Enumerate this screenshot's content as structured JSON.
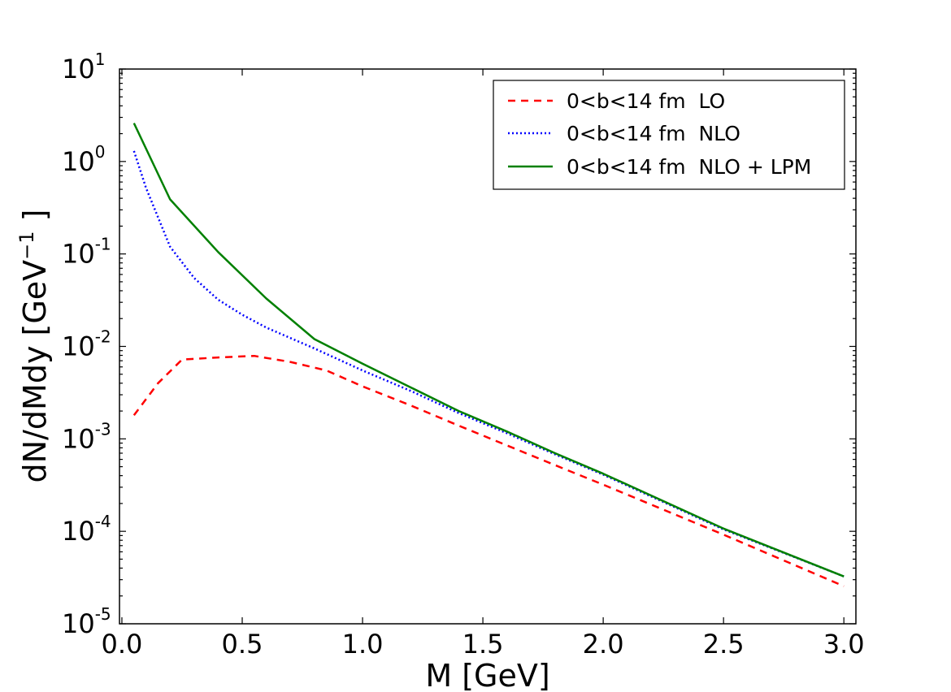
{
  "chart_data": {
    "type": "line",
    "xlabel": "M [GeV]",
    "ylabel": {
      "main": "dN/dMdy [GeV",
      "sup": "−1",
      "close": " ]"
    },
    "xlim": [
      -0.01,
      3.05
    ],
    "ylim_log10": [
      -5,
      1
    ],
    "yscale": "log",
    "x_ticks": [
      {
        "value": 0.0,
        "label": "0.0"
      },
      {
        "value": 0.5,
        "label": "0.5"
      },
      {
        "value": 1.0,
        "label": "1.0"
      },
      {
        "value": 1.5,
        "label": "1.5"
      },
      {
        "value": 2.0,
        "label": "2.0"
      },
      {
        "value": 2.5,
        "label": "2.5"
      },
      {
        "value": 3.0,
        "label": "3.0"
      }
    ],
    "y_ticks": [
      {
        "exp": 1,
        "base": "10",
        "sup": "1"
      },
      {
        "exp": 0,
        "base": "10",
        "sup": "0"
      },
      {
        "exp": -1,
        "base": "10",
        "sup": "-1"
      },
      {
        "exp": -2,
        "base": "10",
        "sup": "-2"
      },
      {
        "exp": -3,
        "base": "10",
        "sup": "-3"
      },
      {
        "exp": -4,
        "base": "10",
        "sup": "-4"
      },
      {
        "exp": -5,
        "base": "10",
        "sup": "-5"
      }
    ],
    "legend_position": "top-right",
    "series": [
      {
        "name": "0<b<14 fm  LO",
        "color": "#ff0000",
        "style": "dashed",
        "x": [
          0.05,
          0.15,
          0.25,
          0.4,
          0.55,
          0.7,
          0.85,
          1.0,
          1.2,
          1.4,
          1.6,
          1.8,
          2.0,
          2.5,
          3.0
        ],
        "y": [
          0.0018,
          0.004,
          0.0072,
          0.0076,
          0.0079,
          0.0068,
          0.0055,
          0.0037,
          0.0023,
          0.00139,
          0.00085,
          0.00052,
          0.00032,
          9.2e-05,
          2.55e-05
        ]
      },
      {
        "name": "0<b<14 fm  NLO",
        "color": "#0000ff",
        "style": "dotted",
        "x": [
          0.05,
          0.1,
          0.2,
          0.3,
          0.4,
          0.5,
          0.6,
          0.8,
          1.0,
          1.2,
          1.4,
          1.6,
          1.8,
          2.0,
          2.5,
          3.0
        ],
        "y": [
          1.3,
          0.52,
          0.12,
          0.055,
          0.032,
          0.022,
          0.016,
          0.0095,
          0.0055,
          0.0033,
          0.0019,
          0.00115,
          0.00068,
          0.00041,
          0.000105,
          3.25e-05
        ]
      },
      {
        "name": "0<b<14 fm  NLO + LPM",
        "color": "#008000",
        "style": "solid",
        "x": [
          0.05,
          0.2,
          0.4,
          0.6,
          0.8,
          1.0,
          1.2,
          1.4,
          1.6,
          1.8,
          2.0,
          2.5,
          3.0
        ],
        "y": [
          2.6,
          0.39,
          0.105,
          0.033,
          0.012,
          0.0065,
          0.0036,
          0.002,
          0.0012,
          0.0007,
          0.00042,
          0.000107,
          3.25e-05
        ]
      }
    ]
  }
}
